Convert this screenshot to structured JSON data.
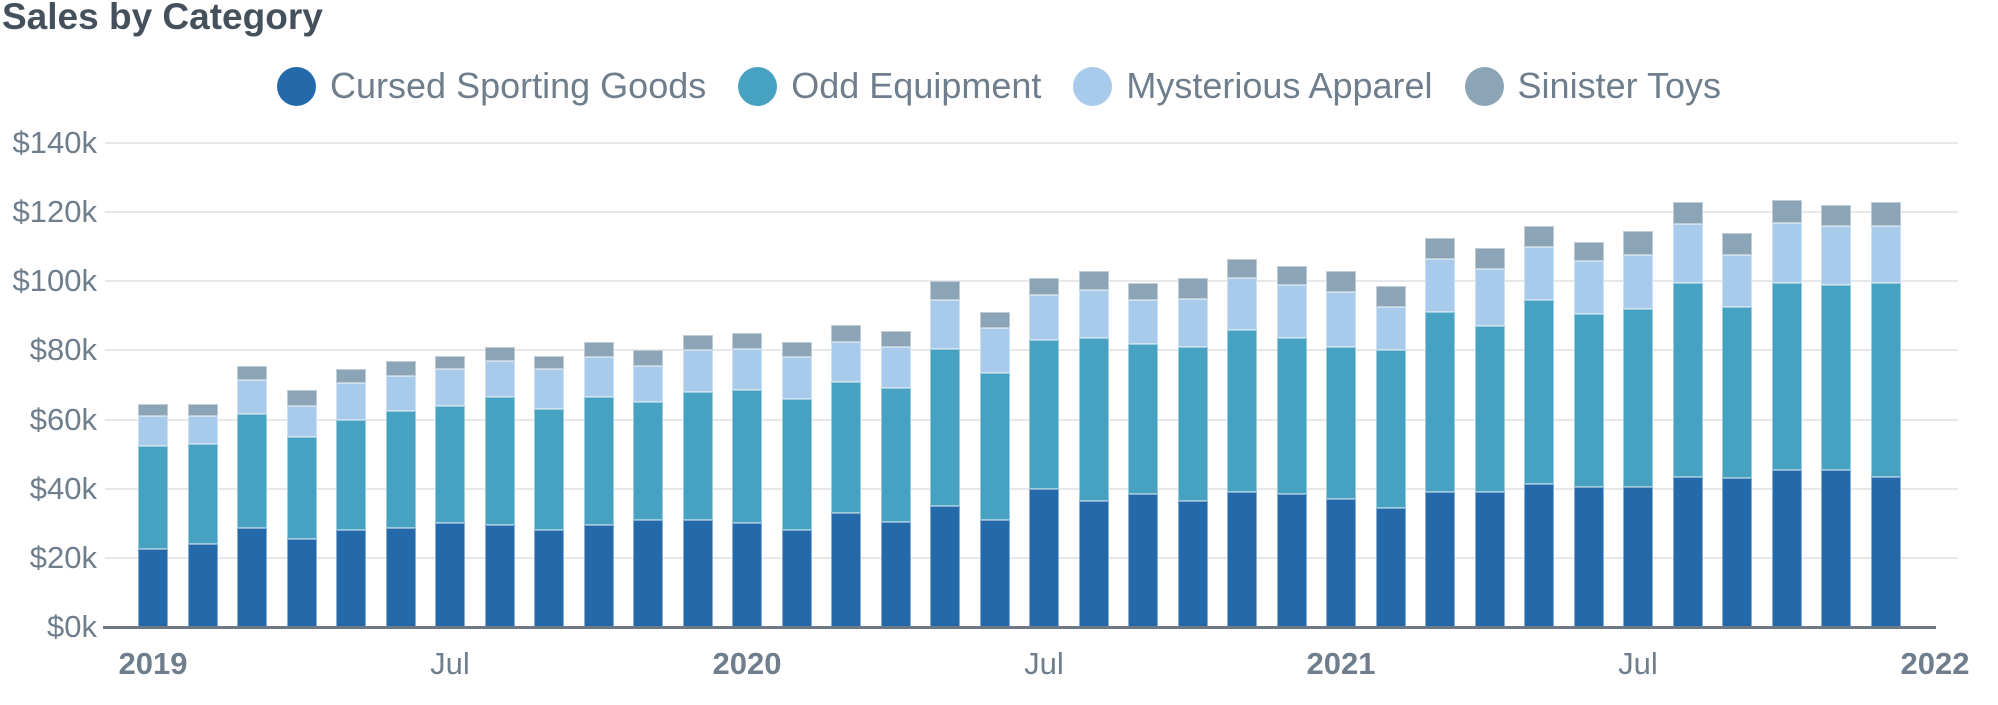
{
  "title": "Sales by Category",
  "colors": {
    "background": "#ffffff",
    "title_text": "#44515c",
    "axis_text": "#6f7e8c",
    "gridline": "#e6e8eb",
    "axis_line": "#6e7987",
    "cursed_sporting_goods": "#2469a9",
    "odd_equipment": "#47a2c2",
    "mysterious_apparel": "#a8cbec",
    "sinister_toys": "#8ca5b6"
  },
  "legend": {
    "items": [
      {
        "label": "Cursed Sporting Goods",
        "color": "#2469a9"
      },
      {
        "label": "Odd Equipment",
        "color": "#47a2c2"
      },
      {
        "label": "Mysterious Apparel",
        "color": "#a8cbec"
      },
      {
        "label": "Sinister Toys",
        "color": "#8ca5b6"
      }
    ]
  },
  "y_axis": {
    "unit": "USD thousands",
    "ticks": [
      {
        "label": "$0k",
        "value": 0
      },
      {
        "label": "$20k",
        "value": 20
      },
      {
        "label": "$40k",
        "value": 40
      },
      {
        "label": "$60k",
        "value": 60
      },
      {
        "label": "$80k",
        "value": 80
      },
      {
        "label": "$100k",
        "value": 100
      },
      {
        "label": "$120k",
        "value": 120
      },
      {
        "label": "$140k",
        "value": 140
      }
    ]
  },
  "x_axis": {
    "ticks": [
      {
        "label": "2019",
        "month_index": 0,
        "bold": true
      },
      {
        "label": "Jul",
        "month_index": 6,
        "bold": false
      },
      {
        "label": "2020",
        "month_index": 12,
        "bold": true
      },
      {
        "label": "Jul",
        "month_index": 18,
        "bold": false
      },
      {
        "label": "2021",
        "month_index": 24,
        "bold": true
      },
      {
        "label": "Jul",
        "month_index": 30,
        "bold": false
      },
      {
        "label": "2022",
        "month_index": 36,
        "bold": true
      }
    ]
  },
  "chart_data": {
    "type": "bar",
    "stacked": true,
    "title": "Sales by Category",
    "unit": "USD thousands",
    "ylim": [
      0,
      140
    ],
    "grid": true,
    "legend_position": "top",
    "x": [
      "2019-01",
      "2019-02",
      "2019-03",
      "2019-04",
      "2019-05",
      "2019-06",
      "2019-07",
      "2019-08",
      "2019-09",
      "2019-10",
      "2019-11",
      "2019-12",
      "2020-01",
      "2020-02",
      "2020-03",
      "2020-04",
      "2020-05",
      "2020-06",
      "2020-07",
      "2020-08",
      "2020-09",
      "2020-10",
      "2020-11",
      "2020-12",
      "2021-01",
      "2021-02",
      "2021-03",
      "2021-04",
      "2021-05",
      "2021-06",
      "2021-07",
      "2021-08",
      "2021-09",
      "2021-10",
      "2021-11",
      "2021-12"
    ],
    "series": [
      {
        "name": "Cursed Sporting Goods",
        "color": "#2469a9",
        "values": [
          22.5,
          24,
          28.5,
          25.5,
          28,
          28.5,
          30,
          29.5,
          28,
          29.5,
          31,
          31,
          30,
          28,
          33,
          30.5,
          35,
          31,
          40,
          36.5,
          38.5,
          36.5,
          39,
          38.5,
          37,
          34.5,
          39,
          39,
          41.5,
          40.5,
          40.5,
          43.5,
          43,
          45.5,
          45.5,
          43.5
        ]
      },
      {
        "name": "Odd Equipment",
        "color": "#47a2c2",
        "values": [
          30,
          29,
          33,
          29.5,
          32,
          34,
          34,
          37,
          35,
          37,
          34,
          37,
          38.5,
          38,
          38,
          38.5,
          45.5,
          42.5,
          43,
          47,
          43.5,
          44.5,
          47,
          45,
          44,
          45.5,
          52,
          48,
          53,
          50,
          51.5,
          56,
          49.5,
          54,
          53.5,
          56
        ]
      },
      {
        "name": "Mysterious Apparel",
        "color": "#a8cbec",
        "values": [
          8.5,
          8,
          10,
          9,
          10.5,
          10,
          10.5,
          10.5,
          11.5,
          11.5,
          10.5,
          12,
          12,
          12,
          11.5,
          12,
          14,
          13,
          13,
          14,
          12.5,
          14,
          15,
          15.5,
          16,
          12.5,
          15.5,
          16.5,
          15.5,
          15.5,
          15.5,
          17,
          15,
          17.5,
          17,
          16.5
        ]
      },
      {
        "name": "Sinister Toys",
        "color": "#8ca5b6",
        "values": [
          3.5,
          3.5,
          4,
          4.5,
          4,
          4.5,
          4,
          4,
          4,
          4.5,
          4.5,
          4.5,
          4.5,
          4.5,
          5,
          4.5,
          5.5,
          4.5,
          5,
          5.5,
          5,
          6,
          5.5,
          5.5,
          6,
          6,
          6,
          6,
          6,
          5.5,
          7,
          6.5,
          6.5,
          6.5,
          6,
          7
        ]
      }
    ]
  }
}
